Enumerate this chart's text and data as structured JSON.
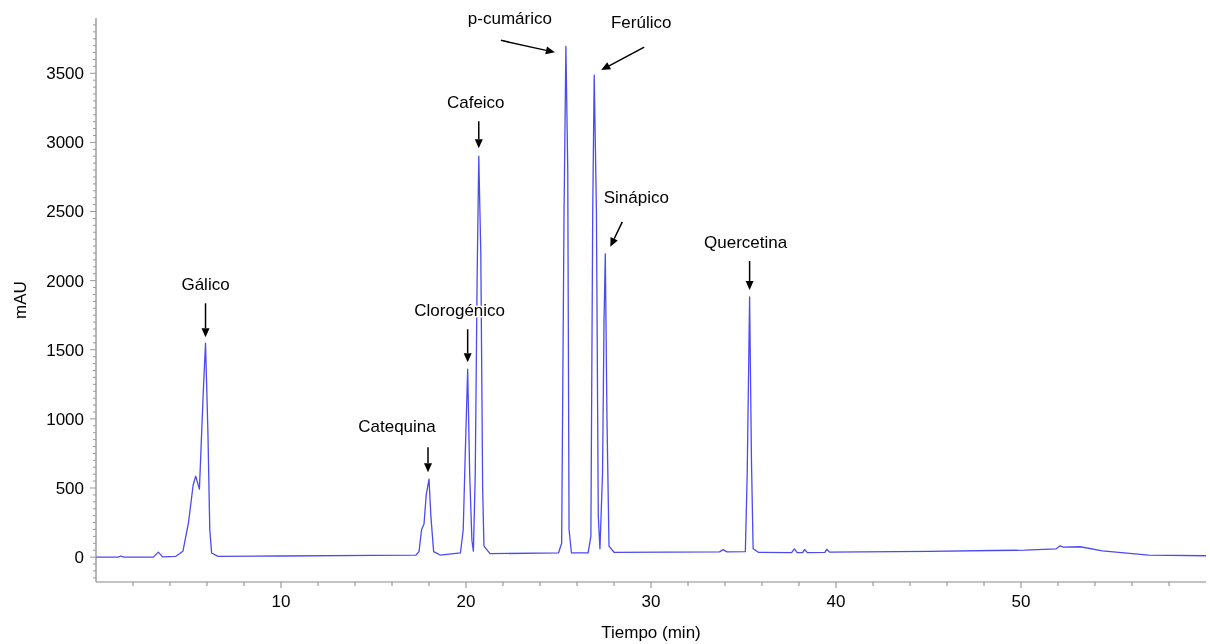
{
  "chart_data": {
    "type": "line",
    "xlabel": "Tiempo (min)",
    "ylabel": "mAU",
    "xlim": [
      0,
      60
    ],
    "ylim": [
      -180,
      3900
    ],
    "xticks": [
      {
        "value": 2,
        "label": null
      },
      {
        "value": 4,
        "label": null
      },
      {
        "value": 6,
        "label": null
      },
      {
        "value": 8,
        "label": null
      },
      10,
      {
        "value": 12,
        "label": null
      },
      {
        "value": 14,
        "label": null
      },
      {
        "value": 16,
        "label": null
      },
      {
        "value": 18,
        "label": null
      },
      20,
      {
        "value": 22,
        "label": null
      },
      {
        "value": 24,
        "label": null
      },
      {
        "value": 26,
        "label": null
      },
      {
        "value": 28,
        "label": null
      },
      30,
      {
        "value": 32,
        "label": null
      },
      {
        "value": 34,
        "label": null
      },
      {
        "value": 36,
        "label": null
      },
      {
        "value": 38,
        "label": null
      },
      40,
      {
        "value": 42,
        "label": null
      },
      {
        "value": 44,
        "label": null
      },
      {
        "value": 46,
        "label": null
      },
      {
        "value": 48,
        "label": null
      },
      50,
      {
        "value": 52,
        "label": null
      },
      {
        "value": 54,
        "label": null
      },
      {
        "value": 56,
        "label": null
      },
      {
        "value": 58,
        "label": null
      }
    ],
    "yticks": [
      {
        "value": -150,
        "label": null
      },
      {
        "value": -100,
        "label": null
      },
      {
        "value": -50,
        "label": null
      },
      0,
      {
        "value": 50,
        "label": null
      },
      {
        "value": 100,
        "label": null
      },
      {
        "value": 150,
        "label": null
      },
      {
        "value": 200,
        "label": null
      },
      {
        "value": 250,
        "label": null
      },
      {
        "value": 300,
        "label": null
      },
      {
        "value": 350,
        "label": null
      },
      {
        "value": 400,
        "label": null
      },
      {
        "value": 450,
        "label": null
      },
      500,
      {
        "value": 550,
        "label": null
      },
      {
        "value": 600,
        "label": null
      },
      {
        "value": 650,
        "label": null
      },
      {
        "value": 700,
        "label": null
      },
      {
        "value": 750,
        "label": null
      },
      {
        "value": 800,
        "label": null
      },
      {
        "value": 850,
        "label": null
      },
      {
        "value": 900,
        "label": null
      },
      {
        "value": 950,
        "label": null
      },
      1000,
      {
        "value": 1050,
        "label": null
      },
      {
        "value": 1100,
        "label": null
      },
      {
        "value": 1150,
        "label": null
      },
      {
        "value": 1200,
        "label": null
      },
      {
        "value": 1250,
        "label": null
      },
      {
        "value": 1300,
        "label": null
      },
      {
        "value": 1350,
        "label": null
      },
      {
        "value": 1400,
        "label": null
      },
      {
        "value": 1450,
        "label": null
      },
      1500,
      {
        "value": 1550,
        "label": null
      },
      {
        "value": 1600,
        "label": null
      },
      {
        "value": 1650,
        "label": null
      },
      {
        "value": 1700,
        "label": null
      },
      {
        "value": 1750,
        "label": null
      },
      {
        "value": 1800,
        "label": null
      },
      {
        "value": 1850,
        "label": null
      },
      {
        "value": 1900,
        "label": null
      },
      {
        "value": 1950,
        "label": null
      },
      2000,
      {
        "value": 2050,
        "label": null
      },
      {
        "value": 2100,
        "label": null
      },
      {
        "value": 2150,
        "label": null
      },
      {
        "value": 2200,
        "label": null
      },
      {
        "value": 2250,
        "label": null
      },
      {
        "value": 2300,
        "label": null
      },
      {
        "value": 2350,
        "label": null
      },
      {
        "value": 2400,
        "label": null
      },
      {
        "value": 2450,
        "label": null
      },
      2500,
      {
        "value": 2550,
        "label": null
      },
      {
        "value": 2600,
        "label": null
      },
      {
        "value": 2650,
        "label": null
      },
      {
        "value": 2700,
        "label": null
      },
      {
        "value": 2750,
        "label": null
      },
      {
        "value": 2800,
        "label": null
      },
      {
        "value": 2850,
        "label": null
      },
      {
        "value": 2900,
        "label": null
      },
      {
        "value": 2950,
        "label": null
      },
      3000,
      {
        "value": 3050,
        "label": null
      },
      {
        "value": 3100,
        "label": null
      },
      {
        "value": 3150,
        "label": null
      },
      {
        "value": 3200,
        "label": null
      },
      {
        "value": 3250,
        "label": null
      },
      {
        "value": 3300,
        "label": null
      },
      {
        "value": 3350,
        "label": null
      },
      {
        "value": 3400,
        "label": null
      },
      {
        "value": 3450,
        "label": null
      },
      3500,
      {
        "value": 3550,
        "label": null
      },
      {
        "value": 3600,
        "label": null
      },
      {
        "value": 3650,
        "label": null
      },
      {
        "value": 3700,
        "label": null
      },
      {
        "value": 3750,
        "label": null
      },
      {
        "value": 3800,
        "label": null
      },
      {
        "value": 3850,
        "label": null
      }
    ],
    "grid": false,
    "marker": "none",
    "line_style": "solid",
    "series": [
      {
        "color": "#4b4bf0",
        "x": [
          0,
          1.2,
          1.35,
          1.5,
          3.1,
          3.37,
          3.6,
          4.3,
          4.7,
          5.0,
          5.25,
          5.39,
          5.59,
          5.8,
          5.92,
          6.05,
          6.15,
          6.25,
          6.6,
          10,
          15,
          17.3,
          17.46,
          17.6,
          17.73,
          17.85,
          18.0,
          18.1,
          18.25,
          18.6,
          19.7,
          19.85,
          19.95,
          20.09,
          20.2,
          20.32,
          20.4,
          20.5,
          20.6,
          20.69,
          20.8,
          20.9,
          20.97,
          21.3,
          25.0,
          25.17,
          25.3,
          25.4,
          25.5,
          25.57,
          25.7,
          26.6,
          26.75,
          26.85,
          26.93,
          27.05,
          27.15,
          27.24,
          27.38,
          27.46,
          27.53,
          27.62,
          27.73,
          28,
          33.7,
          33.9,
          34.1,
          35.1,
          35.2,
          35.33,
          35.43,
          35.52,
          35.8,
          37.6,
          37.75,
          37.9,
          38.2,
          38.3,
          38.45,
          39.4,
          39.5,
          39.65,
          45,
          48.5,
          50.2,
          51.9,
          52.1,
          52.3,
          53.2,
          54.4,
          56.9,
          60
        ],
        "values": [
          0,
          0,
          8,
          0,
          0,
          36,
          2,
          5,
          43,
          250,
          520,
          586,
          492,
          1200,
          1547,
          900,
          200,
          30,
          5,
          8,
          12,
          15,
          40,
          200,
          239,
          450,
          564,
          300,
          40,
          15,
          30,
          200,
          700,
          1359,
          600,
          120,
          43,
          600,
          2000,
          2900,
          2200,
          500,
          80,
          25,
          30,
          100,
          2500,
          3695,
          2800,
          200,
          30,
          30,
          150,
          2500,
          3487,
          2500,
          300,
          60,
          600,
          1700,
          2194,
          1000,
          80,
          35,
          38,
          54,
          38,
          40,
          600,
          1882,
          700,
          60,
          35,
          32,
          60,
          32,
          32,
          55,
          32,
          34,
          57,
          36,
          42,
          48,
          50,
          60,
          81,
          72,
          75,
          45,
          15,
          10
        ]
      }
    ],
    "annotations": [
      {
        "text": "Gálico",
        "x": 5.92,
        "y": 1547
      },
      {
        "text": "Catequina",
        "x": 18.0,
        "y": 564
      },
      {
        "text": "Clorogénico",
        "x": 20.09,
        "y": 1359
      },
      {
        "text": "Cafeico",
        "x": 20.69,
        "y": 2900
      },
      {
        "text": "p-cumárico",
        "x": 25.4,
        "y": 3695
      },
      {
        "text": "Ferúlico",
        "x": 26.93,
        "y": 3487
      },
      {
        "text": "Sinápico",
        "x": 27.53,
        "y": 2194
      },
      {
        "text": "Quercetina",
        "x": 35.33,
        "y": 1882
      }
    ]
  }
}
